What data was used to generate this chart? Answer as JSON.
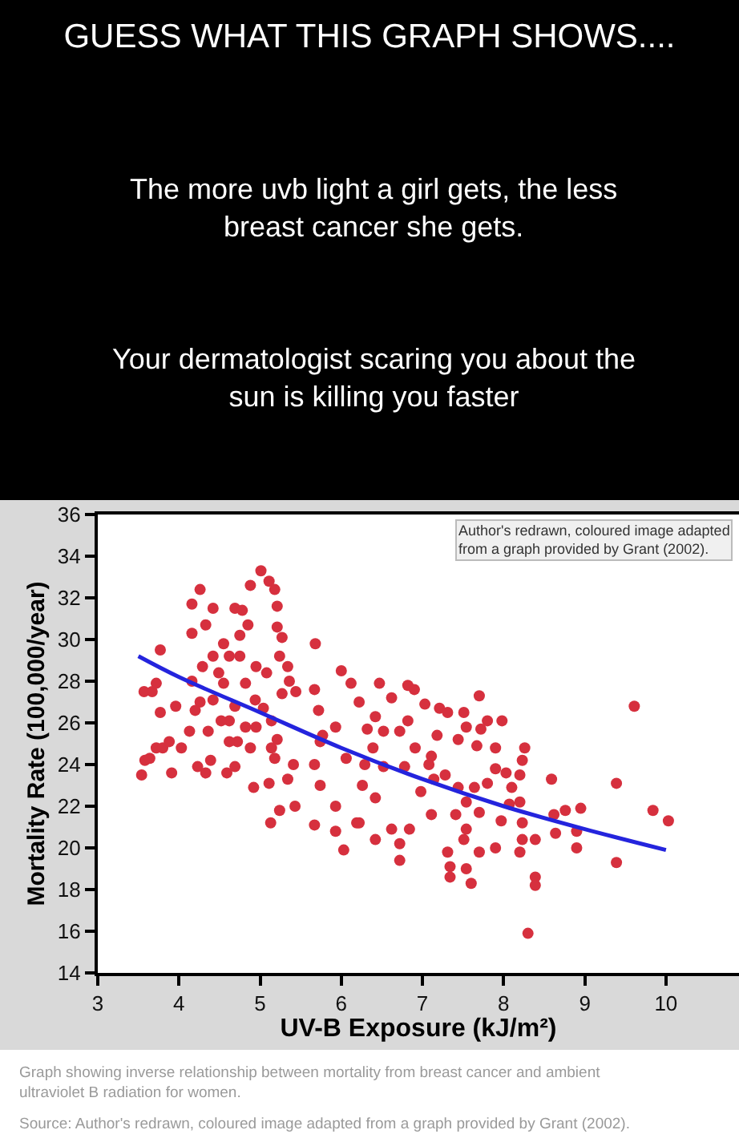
{
  "chart_data": {
    "type": "scatter",
    "title": "GUESS WHAT THIS GRAPH SHOWS....",
    "subtitle": "The more uvb light a girl gets, the less breast cancer she gets.",
    "xlabel": "UV-B Exposure (kJ/m²)",
    "ylabel": "Mortality Rate (100,000/year)",
    "annotations": [
      "Your dermatologist scaring you about the sun is killing you faster",
      "Author's redrawn, coloured image adapted from a graph provided by Grant (2002).",
      "Graph showing inverse relationship between mortality from breast cancer and ambient ultraviolet B radiation for women.",
      "Source: Author's redrawn, coloured image adapted from a graph provided by Grant (2002)."
    ],
    "xlim": [
      3,
      10.9
    ],
    "xticks": [
      3,
      4,
      5,
      6,
      7,
      8,
      9,
      10
    ],
    "ylim": [
      14,
      36
    ],
    "yticks": [
      14,
      16,
      18,
      20,
      22,
      24,
      26,
      28,
      30,
      32,
      34,
      36
    ],
    "marker": "circle",
    "series": [
      {
        "color": "#d6303e",
        "x": [
          3.54,
          3.58,
          3.64,
          3.57,
          3.67,
          3.77,
          3.72,
          3.77,
          3.72,
          3.8,
          3.91,
          3.96,
          3.88,
          4.03,
          4.16,
          4.16,
          4.26,
          4.13,
          4.23,
          4.33,
          4.39,
          4.16,
          4.26,
          4.33,
          4.42,
          4.49,
          4.55,
          4.59,
          4.69,
          4.69,
          4.78,
          4.62,
          4.72,
          4.75,
          4.85,
          4.82,
          4.92,
          4.94,
          4.88,
          5.01,
          5.11,
          5.18,
          5.21,
          5.21,
          5.27,
          5.24,
          5.34,
          5.36,
          5.27,
          5.08,
          5.04,
          5.14,
          5.14,
          5.18,
          5.11,
          5.21,
          5.41,
          5.34,
          5.24,
          5.13,
          5.43,
          5.44,
          5.67,
          5.93,
          6.03,
          5.68,
          5.67,
          5.72,
          5.74,
          5.67,
          5.74,
          5.77,
          6.0,
          5.93,
          5.93,
          6.06,
          6.12,
          6.19,
          4.42,
          4.55,
          4.42,
          4.69,
          4.52,
          4.36,
          4.82,
          4.88,
          4.62,
          4.95,
          4.75,
          4.62,
          4.29,
          4.2,
          4.95,
          6.47,
          6.62,
          6.82,
          6.9,
          7.03,
          6.42,
          6.22,
          7.21,
          7.31,
          7.51,
          7.7,
          7.54,
          7.72,
          7.8,
          7.98,
          7.67,
          7.44,
          7.18,
          7.11,
          6.72,
          6.52,
          6.32,
          6.82,
          6.39,
          6.52,
          6.78,
          6.29,
          6.26,
          6.42,
          6.22,
          6.42,
          6.72,
          6.72,
          6.84,
          6.62,
          6.98,
          7.11,
          7.14,
          7.28,
          7.44,
          7.54,
          7.41,
          7.54,
          7.51,
          7.31,
          7.34,
          7.34,
          7.54,
          7.6,
          7.7,
          7.64,
          7.7,
          7.8,
          7.9,
          7.9,
          7.97,
          8.03,
          8.07,
          8.2,
          8.23,
          8.26,
          8.2,
          8.23,
          8.23,
          8.2,
          8.39,
          8.39,
          8.39,
          8.3,
          8.59,
          8.62,
          8.64,
          8.76,
          8.9,
          8.9,
          8.95,
          9.39,
          9.39,
          9.61,
          9.84,
          10.03,
          7.08,
          6.91,
          7.9,
          8.1
        ],
        "values": [
          23.5,
          24.2,
          24.3,
          27.5,
          27.5,
          29.5,
          27.9,
          26.5,
          24.8,
          24.8,
          23.6,
          26.8,
          25.1,
          24.8,
          31.7,
          30.3,
          32.4,
          25.6,
          23.9,
          23.6,
          24.2,
          28.0,
          27.0,
          30.7,
          31.5,
          28.4,
          29.8,
          23.6,
          23.9,
          31.5,
          31.4,
          26.1,
          25.1,
          29.2,
          30.7,
          27.9,
          22.9,
          27.1,
          32.6,
          33.3,
          32.8,
          32.4,
          31.6,
          30.6,
          30.1,
          29.2,
          28.7,
          28.0,
          27.4,
          28.4,
          26.7,
          26.1,
          24.8,
          24.3,
          23.1,
          25.2,
          24.0,
          23.3,
          21.8,
          21.2,
          22.0,
          27.5,
          21.1,
          20.8,
          19.9,
          29.8,
          27.6,
          26.6,
          25.1,
          24.0,
          23.0,
          25.4,
          28.5,
          25.8,
          22.0,
          24.3,
          27.9,
          21.2,
          29.2,
          27.9,
          27.1,
          26.8,
          26.1,
          25.6,
          25.8,
          24.8,
          25.1,
          28.7,
          30.2,
          29.2,
          28.7,
          26.6,
          25.8,
          27.9,
          27.2,
          27.8,
          27.6,
          26.9,
          26.3,
          27.0,
          26.7,
          26.5,
          26.5,
          27.3,
          25.8,
          25.7,
          26.1,
          26.1,
          24.9,
          25.2,
          25.4,
          24.4,
          25.6,
          25.6,
          25.7,
          26.1,
          24.8,
          23.9,
          23.9,
          24.0,
          23.0,
          22.4,
          21.2,
          20.4,
          20.2,
          19.4,
          20.9,
          20.9,
          22.7,
          21.6,
          23.3,
          23.5,
          22.9,
          22.2,
          21.6,
          20.9,
          20.4,
          19.8,
          19.1,
          18.6,
          19.0,
          18.3,
          19.8,
          22.9,
          21.7,
          23.1,
          23.8,
          20.0,
          21.3,
          23.6,
          22.1,
          23.5,
          24.2,
          24.8,
          22.2,
          21.2,
          20.4,
          19.8,
          20.4,
          18.6,
          18.2,
          15.9,
          23.3,
          21.6,
          20.7,
          21.8,
          20.8,
          20.0,
          21.9,
          23.1,
          19.3,
          26.8,
          21.8,
          21.3,
          24.0,
          24.8,
          24.8,
          22.9
        ]
      },
      {
        "type": "line",
        "color": "#2424dd",
        "marker": "none",
        "line_style": "solid",
        "x": [
          3.5,
          4,
          5,
          6,
          7,
          8,
          9,
          10
        ],
        "values": [
          29.2,
          28.2,
          26.5,
          24.8,
          23.3,
          22.0,
          20.9,
          19.9
        ]
      }
    ]
  }
}
